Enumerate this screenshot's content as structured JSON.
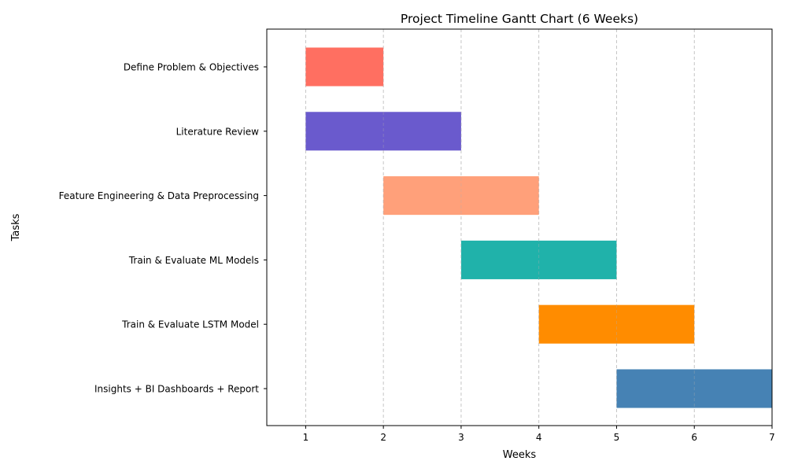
{
  "chart_data": {
    "type": "gantt",
    "title": "Project Timeline Gantt Chart (6 Weeks)",
    "xlabel": "Weeks",
    "ylabel": "Tasks",
    "xlim": [
      0.5,
      7
    ],
    "xticks": [
      1,
      2,
      3,
      4,
      5,
      6,
      7
    ],
    "grid": "x dashed",
    "tasks": [
      {
        "name": "Define Problem & Objectives",
        "start": 1,
        "end": 2,
        "color": "#ff6f61"
      },
      {
        "name": "Literature Review",
        "start": 1,
        "end": 3,
        "color": "#6a5acd"
      },
      {
        "name": "Feature Engineering & Data Preprocessing",
        "start": 2,
        "end": 4,
        "color": "#ffa07a"
      },
      {
        "name": "Train & Evaluate ML Models",
        "start": 3,
        "end": 5,
        "color": "#20b2aa"
      },
      {
        "name": "Train & Evaluate LSTM Model",
        "start": 4,
        "end": 6,
        "color": "#ff8c00"
      },
      {
        "name": "Insights + BI Dashboards + Report",
        "start": 5,
        "end": 7,
        "color": "#4682b4"
      }
    ]
  }
}
